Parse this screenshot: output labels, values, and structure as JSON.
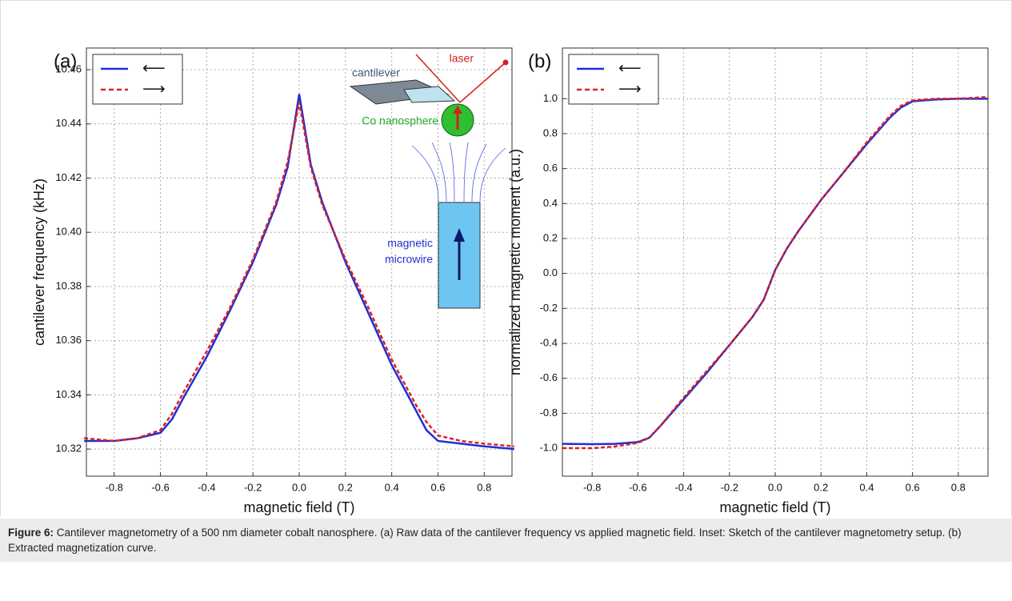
{
  "chart_data": [
    {
      "type": "line",
      "panel_label": "(a)",
      "xlabel": "magnetic field (T)",
      "ylabel": "cantilever frequency (kHz)",
      "x": [
        -0.93,
        -0.8,
        -0.7,
        -0.6,
        -0.55,
        -0.5,
        -0.4,
        -0.3,
        -0.2,
        -0.1,
        -0.05,
        0,
        0.05,
        0.1,
        0.2,
        0.3,
        0.4,
        0.5,
        0.55,
        0.6,
        0.7,
        0.8,
        0.93
      ],
      "series": [
        {
          "name": "⟵",
          "color": "#1f2fd6",
          "dashed": false,
          "values": [
            10.323,
            10.323,
            10.324,
            10.326,
            10.331,
            10.339,
            10.354,
            10.371,
            10.389,
            10.41,
            10.424,
            10.451,
            10.425,
            10.411,
            10.389,
            10.37,
            10.351,
            10.335,
            10.327,
            10.323,
            10.322,
            10.321,
            10.32
          ]
        },
        {
          "name": "⟶",
          "color": "#e02020",
          "dashed": true,
          "values": [
            10.324,
            10.323,
            10.324,
            10.327,
            10.333,
            10.341,
            10.356,
            10.372,
            10.39,
            10.411,
            10.426,
            10.448,
            10.424,
            10.41,
            10.39,
            10.372,
            10.353,
            10.337,
            10.33,
            10.325,
            10.323,
            10.322,
            10.321
          ]
        }
      ],
      "xlim": [
        -0.92,
        0.92
      ],
      "ylim": [
        10.31,
        10.468
      ],
      "xticks": [
        -0.8,
        -0.6,
        -0.4,
        -0.2,
        {
          "value": 0,
          "label": "0.0"
        },
        0.2,
        0.4,
        0.6,
        0.8
      ],
      "yticks": [
        10.32,
        10.34,
        10.36,
        10.38,
        {
          "value": 10.4,
          "label": "10.40"
        },
        10.42,
        10.44,
        10.46
      ],
      "grid": true,
      "legend": "upper left",
      "annotations": {
        "laser": "laser",
        "cantilever": "cantilever",
        "sphere": "Co nanosphere",
        "wire": [
          "magnetic",
          "microwire"
        ]
      }
    },
    {
      "type": "line",
      "panel_label": "(b)",
      "xlabel": "magnetic field (T)",
      "ylabel": "normalized magnetic moment (a.u.)",
      "x": [
        -0.93,
        -0.8,
        -0.7,
        -0.6,
        -0.55,
        -0.5,
        -0.4,
        -0.3,
        -0.2,
        -0.1,
        -0.05,
        0,
        0.05,
        0.1,
        0.2,
        0.3,
        0.4,
        0.5,
        0.55,
        0.6,
        0.7,
        0.8,
        0.93
      ],
      "series": [
        {
          "name": "⟵",
          "color": "#1f2fd6",
          "dashed": false,
          "values": [
            -0.975,
            -0.977,
            -0.975,
            -0.965,
            -0.94,
            -0.87,
            -0.72,
            -0.57,
            -0.41,
            -0.25,
            -0.15,
            0.02,
            0.14,
            0.24,
            0.42,
            0.58,
            0.74,
            0.89,
            0.95,
            0.985,
            0.995,
            1.0,
            1.0
          ]
        },
        {
          "name": "⟶",
          "color": "#e02020",
          "dashed": true,
          "values": [
            -1.0,
            -1.0,
            -0.99,
            -0.97,
            -0.94,
            -0.87,
            -0.71,
            -0.56,
            -0.41,
            -0.25,
            -0.15,
            0.02,
            0.14,
            0.24,
            0.42,
            0.58,
            0.75,
            0.9,
            0.96,
            0.99,
            1.0,
            1.0,
            1.01
          ]
        }
      ],
      "xlim": [
        -0.93,
        0.93
      ],
      "ylim": [
        -1.16,
        1.29
      ],
      "xticks": [
        -0.8,
        -0.6,
        -0.4,
        -0.2,
        {
          "value": 0,
          "label": "0.0"
        },
        0.2,
        0.4,
        0.6,
        0.8
      ],
      "yticks": [
        {
          "value": -1,
          "label": "-1.0"
        },
        -0.8,
        -0.6,
        -0.4,
        -0.2,
        {
          "value": 0,
          "label": "0.0"
        },
        0.2,
        0.4,
        0.6,
        0.8,
        {
          "value": 1,
          "label": "1.0"
        }
      ],
      "grid": true,
      "legend": "upper left"
    }
  ],
  "caption": {
    "label": "Figure 6:",
    "text": "Cantilever magnetometry of a 500 nm diameter cobalt nanosphere. (a) Raw data of the cantilever frequency vs applied magnetic field. Inset: Sketch of the cantilever magnetometry setup. (b) Extracted magnetization curve."
  }
}
